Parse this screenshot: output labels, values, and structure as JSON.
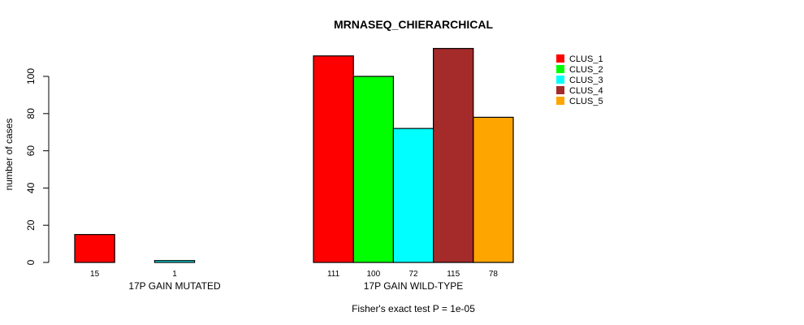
{
  "chart_data": {
    "type": "bar",
    "title": "MRNASEQ_CHIERARCHICAL",
    "xlabel": "Fisher's exact test P = 1e-05",
    "ylabel": "number of cases",
    "ylim": [
      0,
      120
    ],
    "yticks": [
      0,
      20,
      40,
      60,
      80,
      100
    ],
    "categories": [
      "17P GAIN MUTATED",
      "17P GAIN WILD-TYPE"
    ],
    "series": [
      {
        "name": "CLUS_1",
        "color": "#ff0000",
        "values": [
          15,
          111
        ]
      },
      {
        "name": "CLUS_2",
        "color": "#00ff00",
        "values": [
          0,
          100
        ]
      },
      {
        "name": "CLUS_3",
        "color": "#00ffff",
        "values": [
          1,
          72
        ]
      },
      {
        "name": "CLUS_4",
        "color": "#a52a2a",
        "values": [
          0,
          115
        ]
      },
      {
        "name": "CLUS_5",
        "color": "#ffa500",
        "values": [
          0,
          78
        ]
      }
    ],
    "legend_position": "top-right"
  }
}
